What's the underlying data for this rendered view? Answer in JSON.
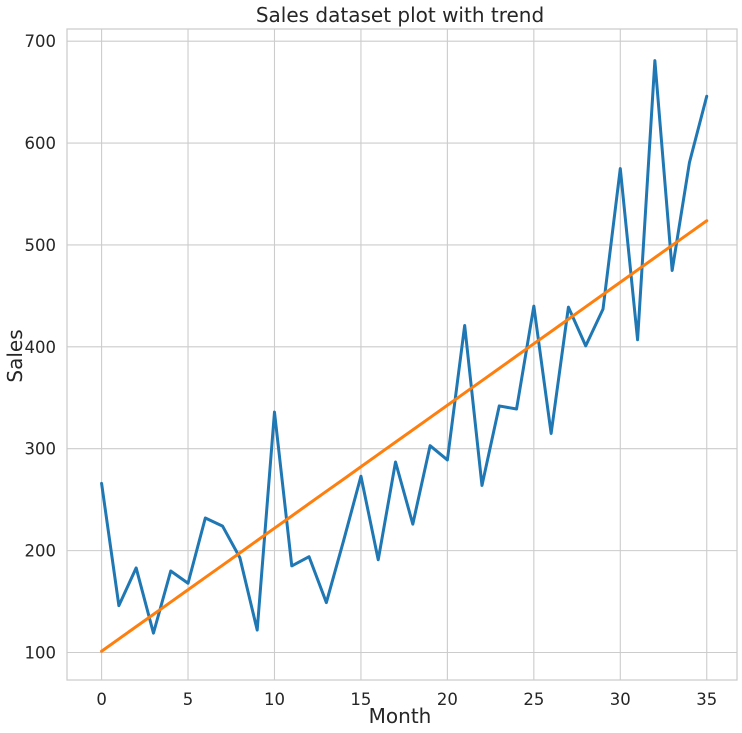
{
  "chart_data": {
    "type": "line",
    "title": "Sales dataset plot with trend",
    "xlabel": "Month",
    "ylabel": "Sales",
    "xlim": [
      -2,
      36.75
    ],
    "ylim": [
      73,
      712
    ],
    "xticks": [
      0,
      5,
      10,
      15,
      20,
      25,
      30,
      35
    ],
    "yticks": [
      100,
      200,
      300,
      400,
      500,
      600,
      700
    ],
    "grid": true,
    "x": [
      0,
      1,
      2,
      3,
      4,
      5,
      6,
      7,
      8,
      9,
      10,
      11,
      12,
      13,
      14,
      15,
      16,
      17,
      18,
      19,
      20,
      21,
      22,
      23,
      24,
      25,
      26,
      27,
      28,
      29,
      30,
      31,
      32,
      33,
      34,
      35
    ],
    "series": [
      {
        "color": "#1f77b4",
        "values": [
          266,
          146,
          183,
          119,
          180,
          168,
          232,
          224,
          193,
          122,
          336,
          185,
          194,
          149,
          210,
          273,
          191,
          287,
          226,
          303,
          289,
          421,
          264,
          342,
          339,
          440,
          315,
          439,
          401,
          437,
          575,
          407,
          681,
          475,
          581,
          646
        ]
      },
      {
        "color": "#ff7f0e",
        "values": [
          101.2,
          113.3,
          125.4,
          137.4,
          149.5,
          161.6,
          173.7,
          185.7,
          197.8,
          209.9,
          222.0,
          234.0,
          246.1,
          258.2,
          270.2,
          282.3,
          294.4,
          306.5,
          318.5,
          330.6,
          342.7,
          354.8,
          366.8,
          378.9,
          391.0,
          403.1,
          415.1,
          427.2,
          439.3,
          451.4,
          463.4,
          475.5,
          487.6,
          499.7,
          511.7,
          523.8
        ]
      }
    ]
  }
}
